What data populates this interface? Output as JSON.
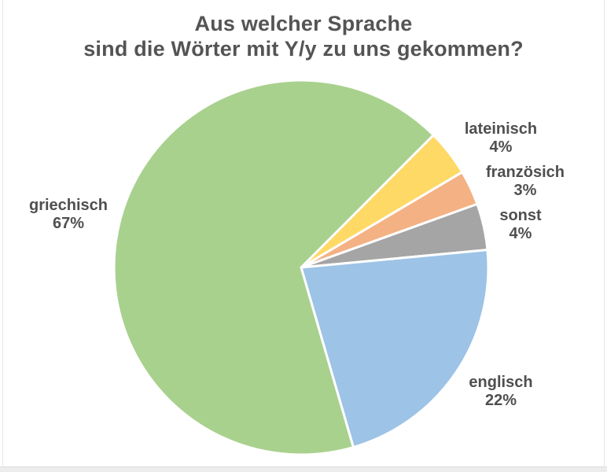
{
  "chart_data": {
    "type": "pie",
    "title": "Aus welcher Sprache sind die Wörter mit Y/y zu uns gekommen?",
    "title_line1": "Aus welcher Sprache",
    "title_line2": "sind die Wörter mit Y/y zu uns gekommen?",
    "legend": "none",
    "labels_position": "outside",
    "direction": "clockwise",
    "start_angle_deg": 45,
    "text_color": "#4F4F4F",
    "background_color": "#FFFFFF",
    "slice_gap_color": "#FFFFFF",
    "slices": [
      {
        "id": "lateinisch",
        "label": "lateinisch",
        "value": 4,
        "pct_label": "4%",
        "color": "#FFD966"
      },
      {
        "id": "franzosich",
        "label": "französich",
        "value": 3,
        "pct_label": "3%",
        "color": "#F4B183"
      },
      {
        "id": "sonst",
        "label": "sonst",
        "value": 4,
        "pct_label": "4%",
        "color": "#A5A5A5"
      },
      {
        "id": "englisch",
        "label": "englisch",
        "value": 22,
        "pct_label": "22%",
        "color": "#9DC3E6"
      },
      {
        "id": "griechisch",
        "label": "griechisch",
        "value": 67,
        "pct_label": "67%",
        "color": "#A9D18E"
      }
    ]
  }
}
